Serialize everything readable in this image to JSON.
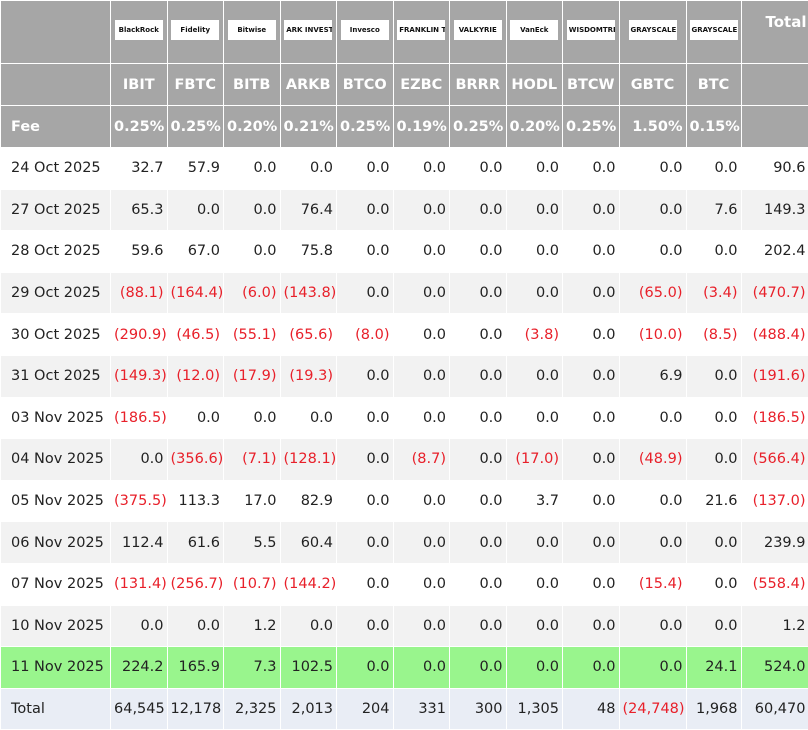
{
  "header": {
    "logos": [
      "BlackRock",
      "Fidelity",
      "Bitwise",
      "ARK INVEST",
      "Invesco",
      "FRANKLIN TEMPLETON",
      "VALKYRIE",
      "VanEck",
      "WISDOMTREE",
      "GRAYSCALE",
      "GRAYSCALE"
    ],
    "total_label": "Total",
    "tickers": [
      "IBIT",
      "FBTC",
      "BITB",
      "ARKB",
      "BTCO",
      "EZBC",
      "BRRR",
      "HODL",
      "BTCW",
      "GBTC",
      "BTC"
    ],
    "fee_label": "Fee",
    "fees": [
      "0.25%",
      "0.25%",
      "0.20%",
      "0.21%",
      "0.25%",
      "0.19%",
      "0.25%",
      "0.20%",
      "0.25%",
      "1.50%",
      "0.15%"
    ]
  },
  "rows": [
    {
      "date": "24 Oct 2025",
      "values": [
        "32.7",
        "57.9",
        "0.0",
        "0.0",
        "0.0",
        "0.0",
        "0.0",
        "0.0",
        "0.0",
        "0.0",
        "0.0",
        "90.6"
      ]
    },
    {
      "date": "27 Oct 2025",
      "values": [
        "65.3",
        "0.0",
        "0.0",
        "76.4",
        "0.0",
        "0.0",
        "0.0",
        "0.0",
        "0.0",
        "0.0",
        "7.6",
        "149.3"
      ]
    },
    {
      "date": "28 Oct 2025",
      "values": [
        "59.6",
        "67.0",
        "0.0",
        "75.8",
        "0.0",
        "0.0",
        "0.0",
        "0.0",
        "0.0",
        "0.0",
        "0.0",
        "202.4"
      ]
    },
    {
      "date": "29 Oct 2025",
      "values": [
        "(88.1)",
        "(164.4)",
        "(6.0)",
        "(143.8)",
        "0.0",
        "0.0",
        "0.0",
        "0.0",
        "0.0",
        "(65.0)",
        "(3.4)",
        "(470.7)"
      ]
    },
    {
      "date": "30 Oct 2025",
      "values": [
        "(290.9)",
        "(46.5)",
        "(55.1)",
        "(65.6)",
        "(8.0)",
        "0.0",
        "0.0",
        "(3.8)",
        "0.0",
        "(10.0)",
        "(8.5)",
        "(488.4)"
      ]
    },
    {
      "date": "31 Oct 2025",
      "values": [
        "(149.3)",
        "(12.0)",
        "(17.9)",
        "(19.3)",
        "0.0",
        "0.0",
        "0.0",
        "0.0",
        "0.0",
        "6.9",
        "0.0",
        "(191.6)"
      ]
    },
    {
      "date": "03 Nov 2025",
      "values": [
        "(186.5)",
        "0.0",
        "0.0",
        "0.0",
        "0.0",
        "0.0",
        "0.0",
        "0.0",
        "0.0",
        "0.0",
        "0.0",
        "(186.5)"
      ]
    },
    {
      "date": "04 Nov 2025",
      "values": [
        "0.0",
        "(356.6)",
        "(7.1)",
        "(128.1)",
        "0.0",
        "(8.7)",
        "0.0",
        "(17.0)",
        "0.0",
        "(48.9)",
        "0.0",
        "(566.4)"
      ]
    },
    {
      "date": "05 Nov 2025",
      "values": [
        "(375.5)",
        "113.3",
        "17.0",
        "82.9",
        "0.0",
        "0.0",
        "0.0",
        "3.7",
        "0.0",
        "0.0",
        "21.6",
        "(137.0)"
      ]
    },
    {
      "date": "06 Nov 2025",
      "values": [
        "112.4",
        "61.6",
        "5.5",
        "60.4",
        "0.0",
        "0.0",
        "0.0",
        "0.0",
        "0.0",
        "0.0",
        "0.0",
        "239.9"
      ]
    },
    {
      "date": "07 Nov 2025",
      "values": [
        "(131.4)",
        "(256.7)",
        "(10.7)",
        "(144.2)",
        "0.0",
        "0.0",
        "0.0",
        "0.0",
        "0.0",
        "(15.4)",
        "0.0",
        "(558.4)"
      ]
    },
    {
      "date": "10 Nov 2025",
      "values": [
        "0.0",
        "0.0",
        "1.2",
        "0.0",
        "0.0",
        "0.0",
        "0.0",
        "0.0",
        "0.0",
        "0.0",
        "0.0",
        "1.2"
      ]
    },
    {
      "date": "11 Nov 2025",
      "values": [
        "224.2",
        "165.9",
        "7.3",
        "102.5",
        "0.0",
        "0.0",
        "0.0",
        "0.0",
        "0.0",
        "0.0",
        "24.1",
        "524.0"
      ]
    }
  ],
  "total": {
    "label": "Total",
    "values": [
      "64,545",
      "12,178",
      "2,325",
      "2,013",
      "204",
      "331",
      "300",
      "1,305",
      "48",
      "(24,748)",
      "1,968",
      "60,470"
    ]
  }
}
